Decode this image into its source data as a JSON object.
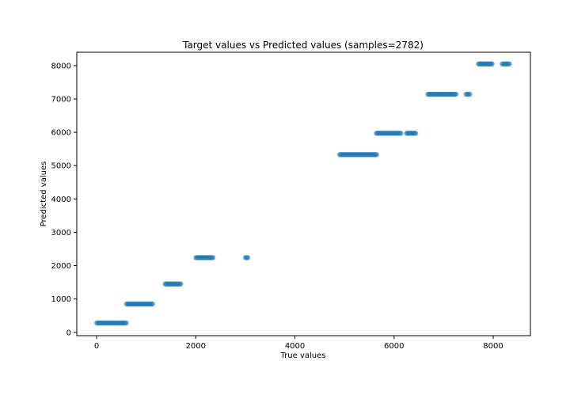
{
  "chart_data": {
    "type": "scatter",
    "title": "Target values vs Predicted values (samples=2782)",
    "xlabel": "True values",
    "ylabel": "Predicted values",
    "xlim": [
      -400,
      8750
    ],
    "ylim": [
      -100,
      8400
    ],
    "xticks": [
      0,
      2000,
      4000,
      6000,
      8000
    ],
    "yticks": [
      0,
      1000,
      2000,
      3000,
      4000,
      5000,
      6000,
      7000,
      8000
    ],
    "grid": false,
    "legend": "none",
    "point_color": "#1f77b4",
    "point_alpha": 0.5,
    "clusters": [
      {
        "x_min": 0,
        "x_max": 600,
        "y": 280
      },
      {
        "x_min": 600,
        "x_max": 1130,
        "y": 850
      },
      {
        "x_min": 1380,
        "x_max": 1700,
        "y": 1450
      },
      {
        "x_min": 2000,
        "x_max": 2350,
        "y": 2240
      },
      {
        "x_min": 3000,
        "x_max": 3050,
        "y": 2240
      },
      {
        "x_min": 4900,
        "x_max": 5650,
        "y": 5330
      },
      {
        "x_min": 5640,
        "x_max": 6140,
        "y": 5970
      },
      {
        "x_min": 6250,
        "x_max": 6440,
        "y": 5970
      },
      {
        "x_min": 6680,
        "x_max": 7250,
        "y": 7140
      },
      {
        "x_min": 7450,
        "x_max": 7530,
        "y": 7140
      },
      {
        "x_min": 7700,
        "x_max": 7980,
        "y": 8050
      },
      {
        "x_min": 8180,
        "x_max": 8330,
        "y": 8050
      }
    ]
  }
}
